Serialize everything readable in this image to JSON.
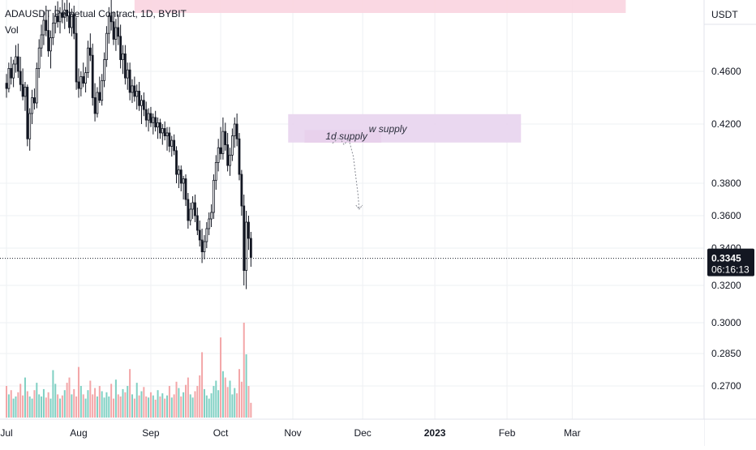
{
  "chart_data": {
    "type": "candlestick",
    "symbol_title": "ADAUSDT Perpetual Contract, 1D, BYBIT",
    "volume_label": "Vol",
    "currency": "USDT",
    "y_ticks": [
      "0.4600",
      "0.4200",
      "0.3800",
      "0.3600",
      "0.3400",
      "0.3200",
      "0.3000",
      "0.2850",
      "0.2700"
    ],
    "y_tick_values": [
      0.46,
      0.42,
      0.38,
      0.36,
      0.34,
      0.32,
      0.3,
      0.285,
      0.27
    ],
    "x_ticks": [
      "Jul",
      "Aug",
      "Sep",
      "Oct",
      "Nov",
      "Dec",
      "2023",
      "Feb",
      "Mar"
    ],
    "x_tick_days": [
      0,
      31,
      62,
      92,
      123,
      153,
      184,
      215,
      243
    ],
    "last_price": "0.3345",
    "countdown": "06:16:13",
    "ohlc": [
      [
        0.451,
        0.458,
        0.44,
        0.447
      ],
      [
        0.447,
        0.466,
        0.444,
        0.462
      ],
      [
        0.462,
        0.47,
        0.45,
        0.455
      ],
      [
        0.455,
        0.468,
        0.448,
        0.465
      ],
      [
        0.465,
        0.478,
        0.459,
        0.47
      ],
      [
        0.47,
        0.479,
        0.455,
        0.46
      ],
      [
        0.46,
        0.47,
        0.445,
        0.45
      ],
      [
        0.45,
        0.462,
        0.438,
        0.441
      ],
      [
        0.441,
        0.452,
        0.43,
        0.448
      ],
      [
        0.448,
        0.45,
        0.405,
        0.41
      ],
      [
        0.41,
        0.432,
        0.402,
        0.428
      ],
      [
        0.428,
        0.446,
        0.42,
        0.44
      ],
      [
        0.44,
        0.447,
        0.431,
        0.436
      ],
      [
        0.436,
        0.466,
        0.432,
        0.462
      ],
      [
        0.462,
        0.482,
        0.455,
        0.476
      ],
      [
        0.476,
        0.492,
        0.47,
        0.485
      ],
      [
        0.485,
        0.501,
        0.478,
        0.495
      ],
      [
        0.495,
        0.505,
        0.484,
        0.488
      ],
      [
        0.488,
        0.498,
        0.47,
        0.474
      ],
      [
        0.474,
        0.488,
        0.462,
        0.483
      ],
      [
        0.483,
        0.5,
        0.478,
        0.493
      ],
      [
        0.493,
        0.505,
        0.486,
        0.498
      ],
      [
        0.498,
        0.508,
        0.49,
        0.494
      ],
      [
        0.494,
        0.504,
        0.486,
        0.5
      ],
      [
        0.5,
        0.509,
        0.493,
        0.497
      ],
      [
        0.497,
        0.507,
        0.489,
        0.502
      ],
      [
        0.502,
        0.509,
        0.494,
        0.498
      ],
      [
        0.498,
        0.507,
        0.486,
        0.49
      ],
      [
        0.49,
        0.503,
        0.484,
        0.499
      ],
      [
        0.499,
        0.505,
        0.482,
        0.486
      ],
      [
        0.486,
        0.497,
        0.446,
        0.452
      ],
      [
        0.452,
        0.462,
        0.44,
        0.447
      ],
      [
        0.447,
        0.46,
        0.441,
        0.456
      ],
      [
        0.456,
        0.466,
        0.448,
        0.451
      ],
      [
        0.451,
        0.463,
        0.444,
        0.459
      ],
      [
        0.459,
        0.481,
        0.455,
        0.476
      ],
      [
        0.476,
        0.486,
        0.467,
        0.471
      ],
      [
        0.471,
        0.479,
        0.434,
        0.44
      ],
      [
        0.44,
        0.451,
        0.422,
        0.428
      ],
      [
        0.428,
        0.448,
        0.425,
        0.444
      ],
      [
        0.444,
        0.456,
        0.436,
        0.438
      ],
      [
        0.438,
        0.458,
        0.434,
        0.453
      ],
      [
        0.453,
        0.473,
        0.448,
        0.468
      ],
      [
        0.468,
        0.491,
        0.463,
        0.486
      ],
      [
        0.486,
        0.504,
        0.479,
        0.498
      ],
      [
        0.498,
        0.509,
        0.488,
        0.494
      ],
      [
        0.494,
        0.501,
        0.478,
        0.482
      ],
      [
        0.482,
        0.496,
        0.474,
        0.49
      ],
      [
        0.49,
        0.499,
        0.478,
        0.484
      ],
      [
        0.484,
        0.492,
        0.462,
        0.468
      ],
      [
        0.468,
        0.478,
        0.458,
        0.472
      ],
      [
        0.472,
        0.478,
        0.45,
        0.455
      ],
      [
        0.455,
        0.466,
        0.446,
        0.461
      ],
      [
        0.461,
        0.466,
        0.438,
        0.444
      ],
      [
        0.444,
        0.454,
        0.436,
        0.449
      ],
      [
        0.449,
        0.456,
        0.437,
        0.441
      ],
      [
        0.441,
        0.45,
        0.431,
        0.445
      ],
      [
        0.445,
        0.452,
        0.43,
        0.434
      ],
      [
        0.434,
        0.442,
        0.42,
        0.438
      ],
      [
        0.438,
        0.444,
        0.426,
        0.431
      ],
      [
        0.431,
        0.437,
        0.418,
        0.423
      ],
      [
        0.423,
        0.432,
        0.415,
        0.428
      ],
      [
        0.428,
        0.433,
        0.418,
        0.421
      ],
      [
        0.421,
        0.428,
        0.413,
        0.425
      ],
      [
        0.425,
        0.43,
        0.415,
        0.418
      ],
      [
        0.418,
        0.425,
        0.41,
        0.421
      ],
      [
        0.421,
        0.424,
        0.41,
        0.414
      ],
      [
        0.414,
        0.42,
        0.406,
        0.417
      ],
      [
        0.417,
        0.422,
        0.409,
        0.412
      ],
      [
        0.412,
        0.418,
        0.402,
        0.414
      ],
      [
        0.414,
        0.418,
        0.401,
        0.405
      ],
      [
        0.405,
        0.412,
        0.398,
        0.409
      ],
      [
        0.409,
        0.413,
        0.399,
        0.402
      ],
      [
        0.402,
        0.405,
        0.38,
        0.386
      ],
      [
        0.386,
        0.392,
        0.377,
        0.389
      ],
      [
        0.389,
        0.392,
        0.375,
        0.38
      ],
      [
        0.38,
        0.385,
        0.37,
        0.383
      ],
      [
        0.383,
        0.386,
        0.366,
        0.37
      ],
      [
        0.37,
        0.374,
        0.352,
        0.357
      ],
      [
        0.357,
        0.368,
        0.354,
        0.364
      ],
      [
        0.364,
        0.372,
        0.358,
        0.368
      ],
      [
        0.368,
        0.373,
        0.356,
        0.36
      ],
      [
        0.36,
        0.365,
        0.348,
        0.351
      ],
      [
        0.351,
        0.357,
        0.341,
        0.345
      ],
      [
        0.345,
        0.352,
        0.332,
        0.338
      ],
      [
        0.338,
        0.348,
        0.334,
        0.344
      ],
      [
        0.344,
        0.356,
        0.34,
        0.352
      ],
      [
        0.352,
        0.362,
        0.348,
        0.358
      ],
      [
        0.358,
        0.367,
        0.353,
        0.362
      ],
      [
        0.362,
        0.386,
        0.358,
        0.382
      ],
      [
        0.382,
        0.399,
        0.376,
        0.394
      ],
      [
        0.394,
        0.41,
        0.388,
        0.404
      ],
      [
        0.404,
        0.418,
        0.396,
        0.4
      ],
      [
        0.4,
        0.425,
        0.396,
        0.415
      ],
      [
        0.415,
        0.421,
        0.402,
        0.406
      ],
      [
        0.406,
        0.414,
        0.388,
        0.392
      ],
      [
        0.392,
        0.404,
        0.385,
        0.399
      ],
      [
        0.399,
        0.417,
        0.395,
        0.412
      ],
      [
        0.412,
        0.425,
        0.404,
        0.42
      ],
      [
        0.42,
        0.428,
        0.405,
        0.41
      ],
      [
        0.41,
        0.414,
        0.382,
        0.386
      ],
      [
        0.386,
        0.389,
        0.36,
        0.366
      ],
      [
        0.366,
        0.373,
        0.32,
        0.328
      ],
      [
        0.328,
        0.363,
        0.318,
        0.356
      ],
      [
        0.356,
        0.36,
        0.339,
        0.346
      ],
      [
        0.346,
        0.35,
        0.33,
        0.335
      ]
    ],
    "volumes": [
      0.3,
      0.22,
      0.26,
      0.18,
      0.2,
      0.24,
      0.32,
      0.21,
      0.38,
      0.25,
      0.2,
      0.18,
      0.26,
      0.33,
      0.22,
      0.2,
      0.27,
      0.19,
      0.24,
      0.18,
      0.45,
      0.32,
      0.22,
      0.18,
      0.21,
      0.26,
      0.33,
      0.38,
      0.22,
      0.27,
      0.2,
      0.48,
      0.3,
      0.22,
      0.18,
      0.26,
      0.35,
      0.22,
      0.28,
      0.2,
      0.3,
      0.25,
      0.19,
      0.24,
      0.2,
      0.32,
      0.18,
      0.36,
      0.22,
      0.2,
      0.27,
      0.24,
      0.3,
      0.46,
      0.22,
      0.18,
      0.33,
      0.21,
      0.25,
      0.29,
      0.2,
      0.19,
      0.24,
      0.21,
      0.17,
      0.26,
      0.2,
      0.23,
      0.18,
      0.21,
      0.3,
      0.19,
      0.22,
      0.34,
      0.28,
      0.2,
      0.24,
      0.31,
      0.38,
      0.22,
      0.19,
      0.25,
      0.3,
      0.4,
      0.62,
      0.27,
      0.21,
      0.18,
      0.23,
      0.3,
      0.35,
      0.26,
      0.76,
      0.44,
      0.38,
      0.29,
      0.35,
      0.22,
      0.28,
      0.23,
      0.46,
      0.34,
      0.9,
      0.6,
      0.3,
      0.14
    ],
    "volume_colors": {
      "up": "#7fd0c3",
      "down": "#f3a6a8"
    },
    "candle_colors": {
      "body": "#131722"
    },
    "annotations": [
      {
        "label": "1d supply",
        "price_top": 0.416,
        "price_bottom": 0.4075,
        "day_start": 128,
        "day_end": 161,
        "color": "#e6afd0"
      },
      {
        "label": "w supply",
        "price_top": 0.4275,
        "price_bottom": 0.4075,
        "day_start": 121,
        "day_end": 221,
        "color": "#e8d4ee"
      },
      {
        "label": "",
        "price_top": 0.52,
        "price_bottom": 0.5,
        "day_start": 55,
        "day_end": 266,
        "color": "#fad4e0"
      }
    ],
    "projection_path": [
      [
        140,
        0.407
      ],
      [
        143,
        0.411
      ],
      [
        145,
        0.406
      ],
      [
        147,
        0.41
      ],
      [
        149,
        0.398
      ],
      [
        150,
        0.385
      ],
      [
        151,
        0.373
      ],
      [
        151.5,
        0.364
      ]
    ],
    "gridlines": true
  }
}
